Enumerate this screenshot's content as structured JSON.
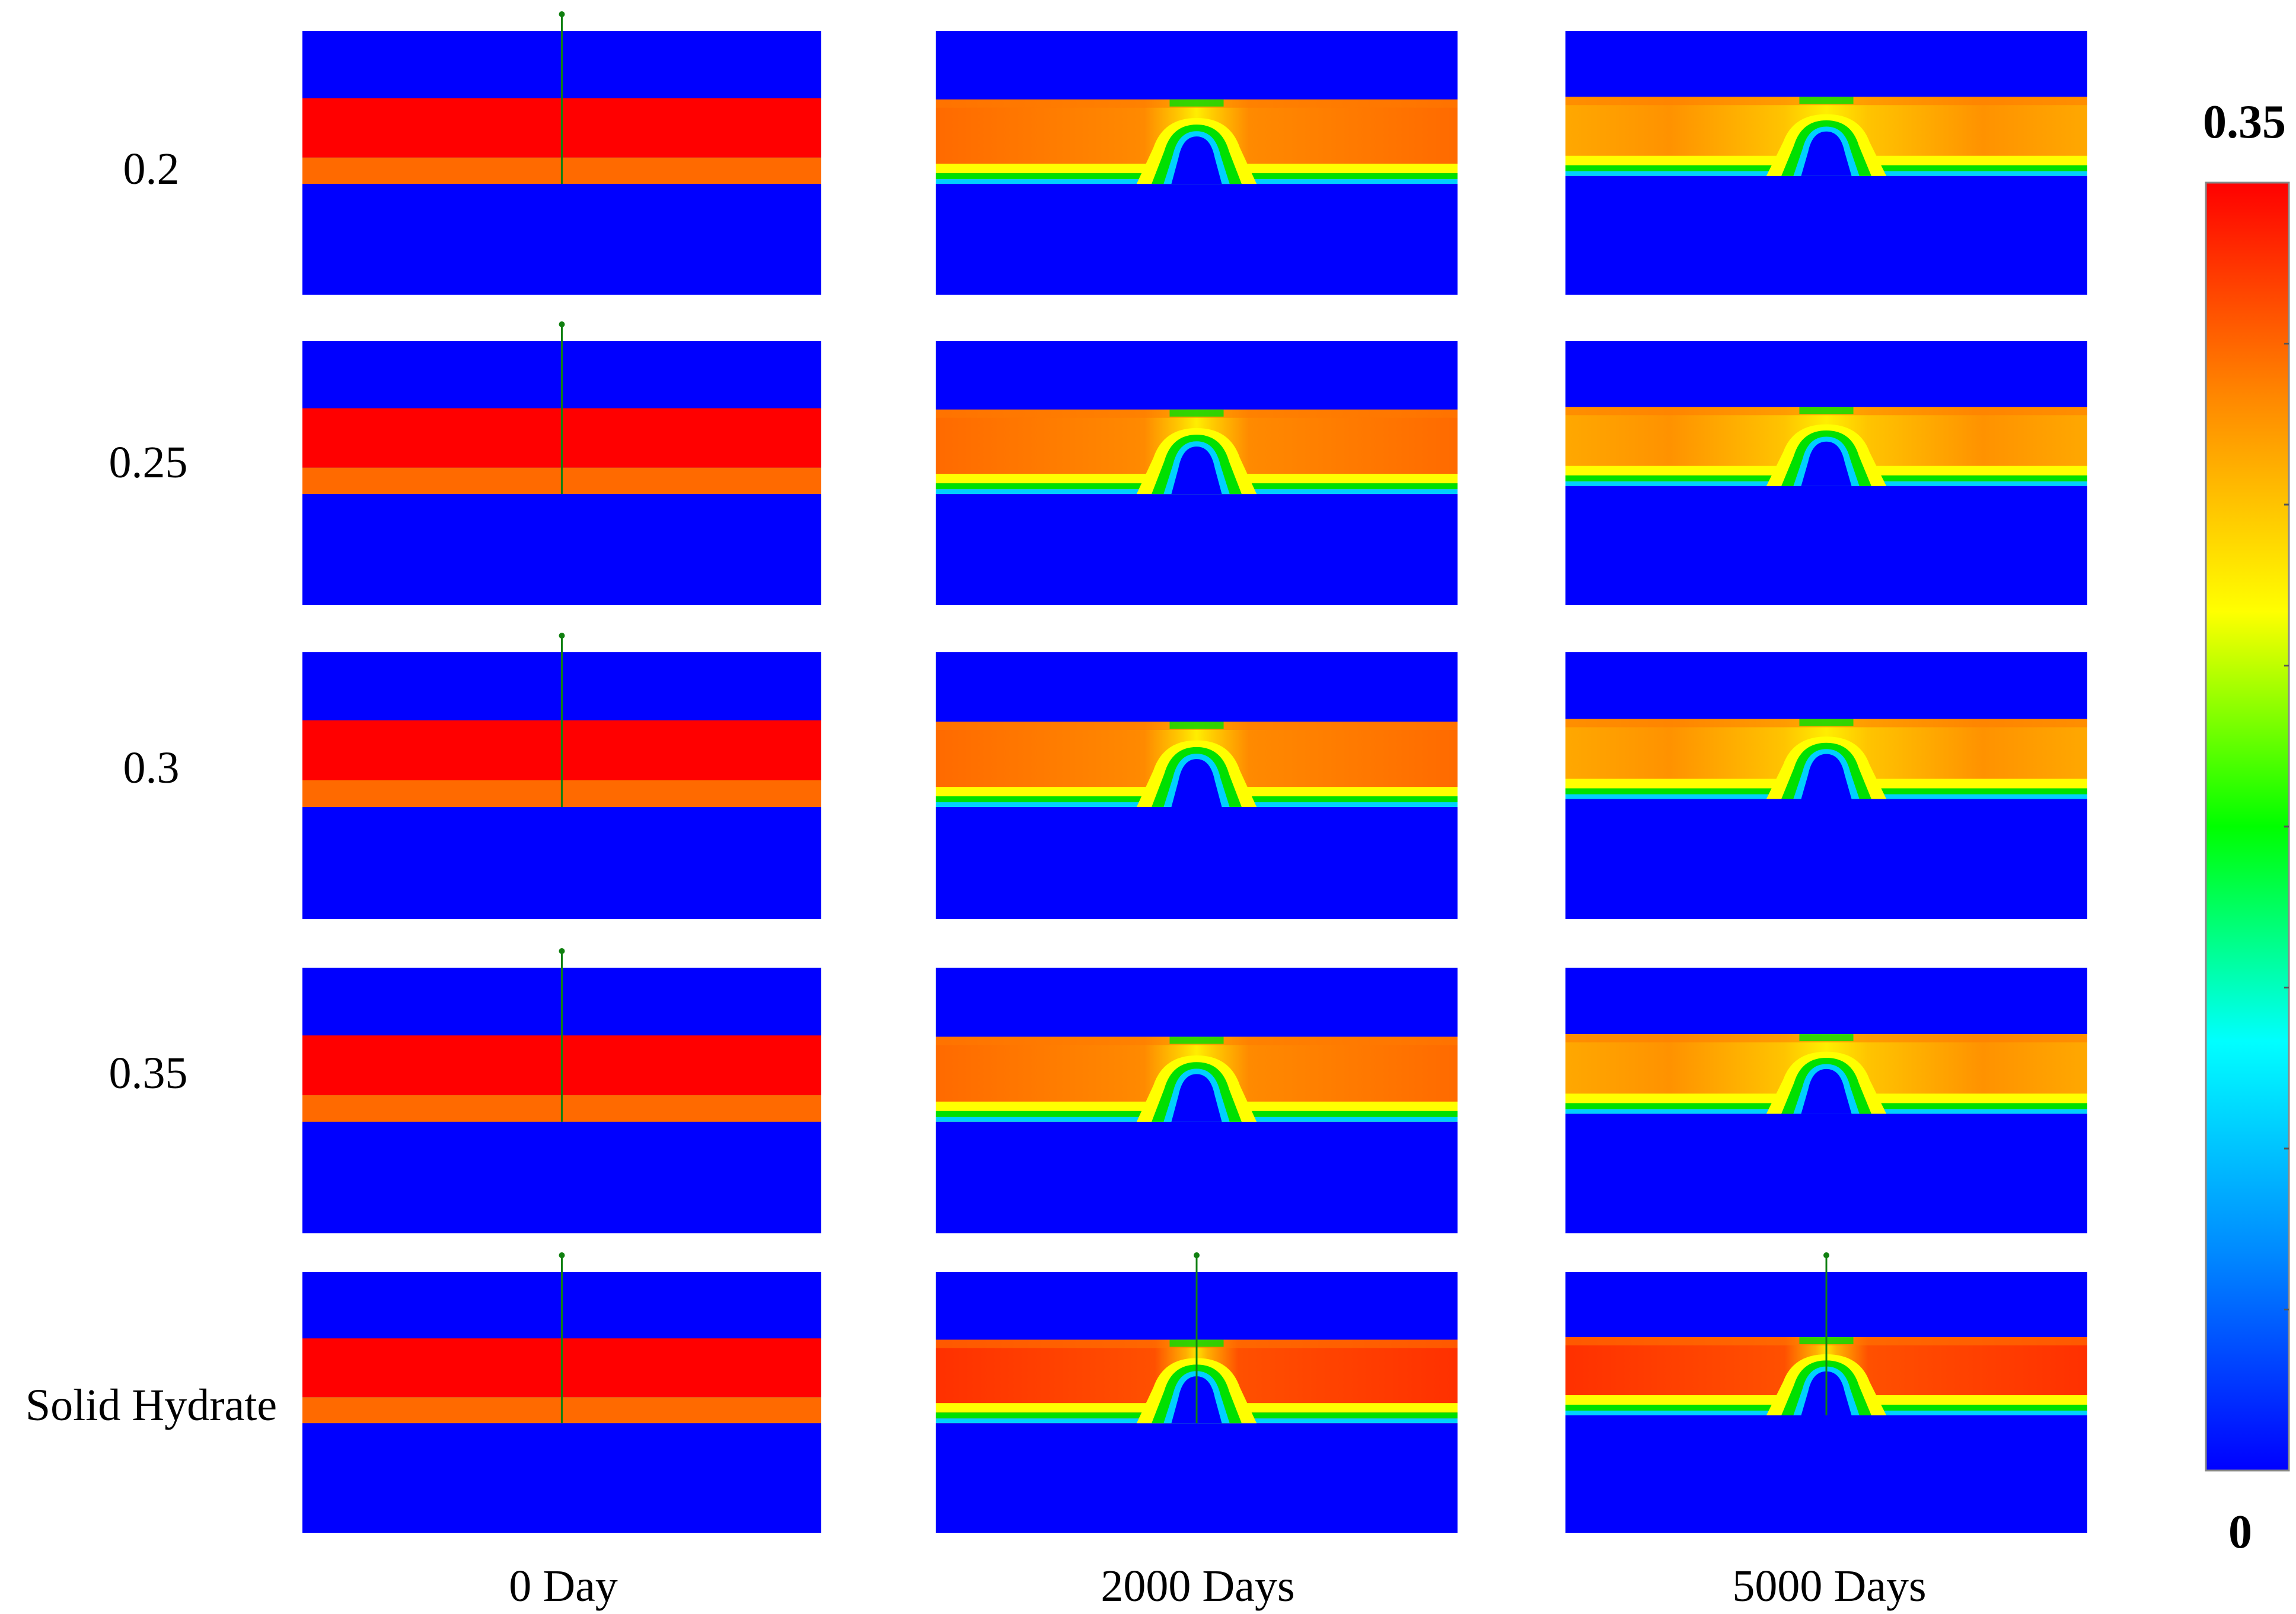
{
  "row_labels": [
    "0.2",
    "0.25",
    "0.3",
    "0.35",
    "Solid Hydrate"
  ],
  "column_labels": [
    "0 Day",
    "2000 Days",
    "5000 Days"
  ],
  "colorbar": {
    "max_label": "0.35",
    "min_label": "0",
    "stops": [
      "#0000ff",
      "#0088ff",
      "#00ffff",
      "#00ff00",
      "#ffff00",
      "#ff8800",
      "#ff0000"
    ]
  },
  "colors": {
    "background_layer": "#0000ff",
    "hydrate_full": "#ff0000",
    "hydrate_lower": "#ff6a00",
    "degraded_orange": "#ff7a00",
    "front_yellow": "#ffff00",
    "front_green": "#00e000",
    "front_cyan": "#00d0ff",
    "well": "#108010"
  }
}
